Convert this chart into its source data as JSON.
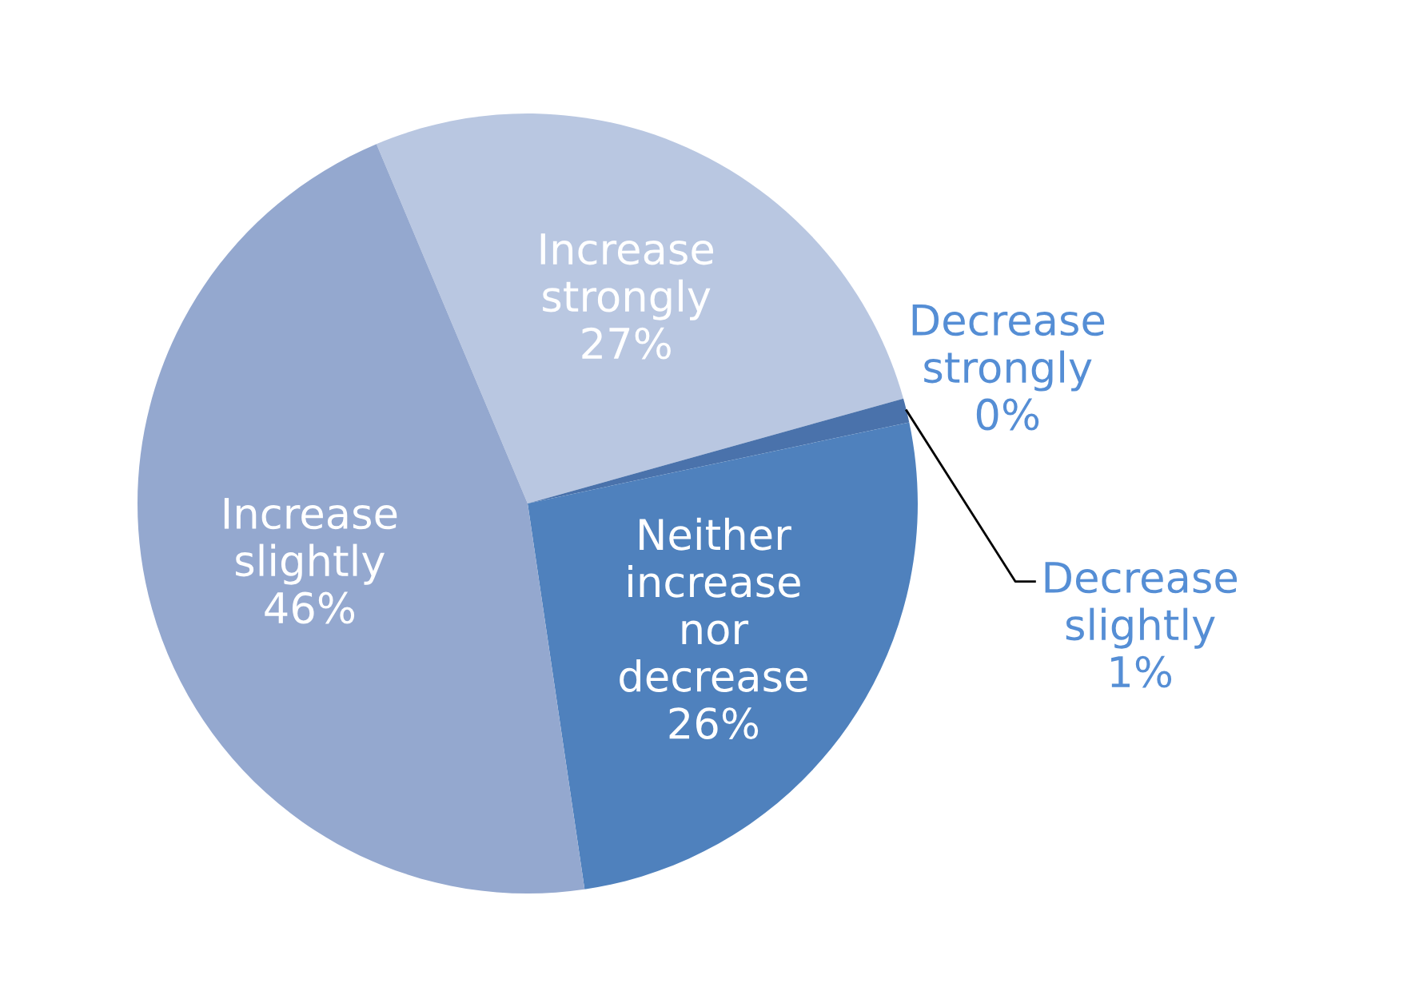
{
  "chart_data": {
    "type": "pie",
    "categories": [
      "Increase strongly",
      "Decrease strongly",
      "Decrease slightly",
      "Neither increase nor decrease",
      "Increase slightly"
    ],
    "values": [
      27,
      0,
      1,
      26,
      46
    ],
    "colors": [
      "#b9c7e1",
      "#3f6aa3",
      "#4a72ab",
      "#4f81bd",
      "#94a8cf"
    ],
    "value_labels": [
      "27%",
      "0%",
      "1%",
      "26%",
      "46%"
    ],
    "legend": false
  }
}
